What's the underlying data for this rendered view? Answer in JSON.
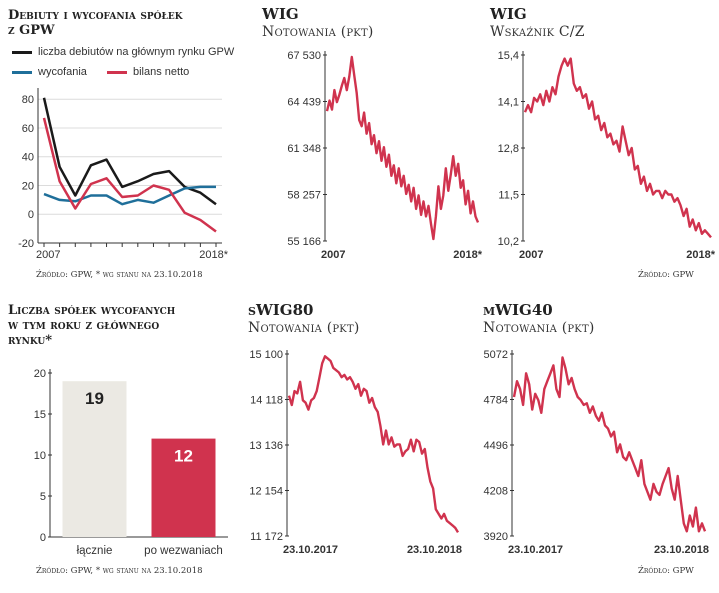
{
  "colors": {
    "black": "#1a1a1a",
    "blue": "#1f6f9a",
    "red": "#d0334e",
    "grey_bar": "#ebe9e3",
    "grid": "#dcdcdc",
    "axis": "#333333"
  },
  "chart_data": [
    {
      "id": "debuty",
      "type": "line",
      "title": "Debiuty i wycofania spółek z GPW",
      "legend": [
        "liczba debiutów na głównym rynku GPW",
        "wycofania",
        "bilans netto"
      ],
      "x": [
        2007,
        2008,
        2009,
        2010,
        2011,
        2012,
        2013,
        2014,
        2015,
        2016,
        2017,
        2018
      ],
      "x_labels": [
        "2007",
        "2018*"
      ],
      "series": [
        {
          "name": "liczba debiutów na głównym rynku GPW",
          "color": "#1a1a1a",
          "values": [
            81,
            33,
            13,
            34,
            38,
            19,
            23,
            28,
            30,
            19,
            15,
            7
          ]
        },
        {
          "name": "wycofania",
          "color": "#1f6f9a",
          "values": [
            14,
            10,
            9,
            13,
            13,
            7,
            10,
            8,
            13,
            18,
            19,
            19
          ]
        },
        {
          "name": "bilans netto",
          "color": "#d0334e",
          "values": [
            67,
            23,
            4,
            21,
            25,
            12,
            13,
            20,
            17,
            1,
            -4,
            -12
          ]
        }
      ],
      "yticks": [
        80,
        60,
        40,
        20,
        0,
        -20
      ],
      "ylim": [
        -20,
        85
      ],
      "source": "Źródło: GPW, * wg stanu na 23.10.2018"
    },
    {
      "id": "wig",
      "type": "line",
      "title": "WIG",
      "subtitle": "Notowania (pkt)",
      "yticks": [
        "67 530",
        "64 439",
        "61 348",
        "58 257",
        "55 166"
      ],
      "ytick_values": [
        67530,
        64439,
        61348,
        58257,
        55166
      ],
      "ylim": [
        55166,
        67530
      ],
      "x_labels": [
        "2007",
        "2018*"
      ],
      "values": [
        63800,
        64500,
        63900,
        65200,
        64400,
        64900,
        65500,
        66000,
        65200,
        66100,
        67400,
        66200,
        65000,
        63200,
        62800,
        63700,
        62300,
        63000,
        61600,
        62200,
        61000,
        61800,
        60500,
        61400,
        60100,
        60900,
        59500,
        60200,
        59000,
        60000,
        58800,
        59500,
        58300,
        58900,
        57800,
        58700,
        57300,
        58200,
        56900,
        57800,
        56800,
        57500,
        56300,
        55300,
        56800,
        58800,
        57300,
        58200,
        60000,
        58500,
        59600,
        60800,
        59500,
        60300,
        58700,
        59200,
        57600,
        58500,
        57000,
        57800,
        56800,
        56400
      ]
    },
    {
      "id": "wig_cz",
      "type": "line",
      "title": "WIG",
      "subtitle": "Wskaźnik C/Z",
      "yticks": [
        "15,4",
        "14,1",
        "12,8",
        "11,5",
        "10,2"
      ],
      "ytick_values": [
        15.4,
        14.1,
        12.8,
        11.5,
        10.2
      ],
      "ylim": [
        10.2,
        15.4
      ],
      "x_labels": [
        "2007",
        "2018*"
      ],
      "values": [
        13.8,
        14.0,
        13.8,
        14.2,
        14.1,
        14.3,
        14.0,
        14.4,
        14.1,
        14.5,
        14.3,
        14.8,
        15.1,
        15.3,
        15.1,
        15.3,
        14.6,
        14.4,
        14.5,
        14.2,
        14.3,
        13.9,
        14.1,
        13.6,
        13.7,
        13.3,
        13.5,
        13.1,
        13.2,
        12.9,
        13.0,
        12.7,
        13.4,
        13.0,
        12.6,
        12.8,
        12.2,
        12.3,
        11.8,
        12.0,
        11.6,
        11.8,
        11.5,
        11.6,
        11.6,
        11.4,
        11.6,
        11.5,
        11.5,
        11.3,
        11.4,
        11.2,
        10.9,
        11.1,
        10.6,
        10.8,
        10.5,
        10.7,
        10.4,
        10.5,
        10.4,
        10.3
      ]
    },
    {
      "id": "wycofane",
      "type": "bar",
      "title": "Liczba spółek wycofanych w tym roku z głównego rynku*",
      "categories": [
        "łącznie",
        "po wezwaniach"
      ],
      "values": [
        19,
        12
      ],
      "value_labels": [
        "19",
        "12"
      ],
      "colors": [
        "#ebe9e3",
        "#d0334e"
      ],
      "yticks": [
        20,
        15,
        10,
        5,
        0
      ],
      "ylim": [
        0,
        20
      ],
      "source": "Źródło: GPW, * wg stanu na 23.10.2018"
    },
    {
      "id": "swig80",
      "type": "line",
      "title": "sWIG80",
      "subtitle": "Notowania (pkt)",
      "yticks": [
        "15 100",
        "14 118",
        "13 136",
        "12 154",
        "11 172"
      ],
      "ytick_values": [
        15100,
        14118,
        13136,
        12154,
        11172
      ],
      "ylim": [
        11172,
        15100
      ],
      "x_labels": [
        "23.10.2017",
        "23.10.2018"
      ],
      "values": [
        14200,
        14000,
        14300,
        14250,
        14500,
        14100,
        14050,
        13900,
        14100,
        14150,
        14300,
        14600,
        14900,
        15050,
        15000,
        14950,
        14800,
        14750,
        14700,
        14600,
        14650,
        14550,
        14600,
        14500,
        14350,
        14450,
        14200,
        14350,
        14300,
        14050,
        14150,
        13950,
        13850,
        13550,
        13150,
        13450,
        13150,
        13300,
        13100,
        13150,
        13150,
        12900,
        13000,
        13050,
        13250,
        13000,
        13250,
        13200,
        12950,
        13050,
        12650,
        12350,
        12200,
        11750,
        11650,
        11550,
        11650,
        11500,
        11450,
        11400,
        11350,
        11250
      ]
    },
    {
      "id": "mwig40",
      "type": "line",
      "title": "mWIG40",
      "subtitle": "Notowania (pkt)",
      "yticks": [
        "5072",
        "4784",
        "4496",
        "4208",
        "3920"
      ],
      "ytick_values": [
        5072,
        4784,
        4496,
        4208,
        3920
      ],
      "ylim": [
        3920,
        5072
      ],
      "x_labels": [
        "23.10.2017",
        "23.10.2018"
      ],
      "values": [
        4800,
        4900,
        4850,
        4750,
        4950,
        4880,
        4720,
        4820,
        4780,
        4700,
        4850,
        4900,
        4950,
        5000,
        4850,
        4800,
        5050,
        4980,
        4880,
        4920,
        4850,
        4800,
        4780,
        4750,
        4760,
        4700,
        4740,
        4680,
        4650,
        4700,
        4620,
        4600,
        4550,
        4580,
        4450,
        4500,
        4420,
        4400,
        4450,
        4400,
        4350,
        4300,
        4400,
        4250,
        4200,
        4150,
        4250,
        4200,
        4180,
        4250,
        4300,
        4350,
        4220,
        4150,
        4300,
        4150,
        4000,
        3950,
        4050,
        3980,
        4100,
        3950,
        4000,
        3950
      ]
    }
  ],
  "panel_text": {
    "debuty": {
      "title_line1": "Debiuty i wycofania spółek",
      "title_line2": "z GPW",
      "legend1": "liczba debiutów na głównym rynku GPW",
      "legend2": "wycofania",
      "legend3": "bilans netto",
      "source": "Źródło: GPW, * wg stanu na 23.10.2018"
    },
    "wig": {
      "title": "WIG",
      "subtitle": "Notowania (pkt)"
    },
    "wig_cz": {
      "title": "WIG",
      "subtitle": "Wskaźnik C/Z",
      "source": "Źródło: GPW"
    },
    "wycofane": {
      "title_line1": "Liczba spółek wycofanych",
      "title_line2": "w tym roku z głównego",
      "title_line3": "rynku*",
      "source": "Źródło: GPW, * wg stanu na 23.10.2018"
    },
    "swig80": {
      "title": "sWIG80",
      "subtitle": "Notowania (pkt)"
    },
    "mwig40": {
      "title": "mWIG40",
      "subtitle": "Notowania (pkt)",
      "source": "Źródło: GPW"
    }
  }
}
